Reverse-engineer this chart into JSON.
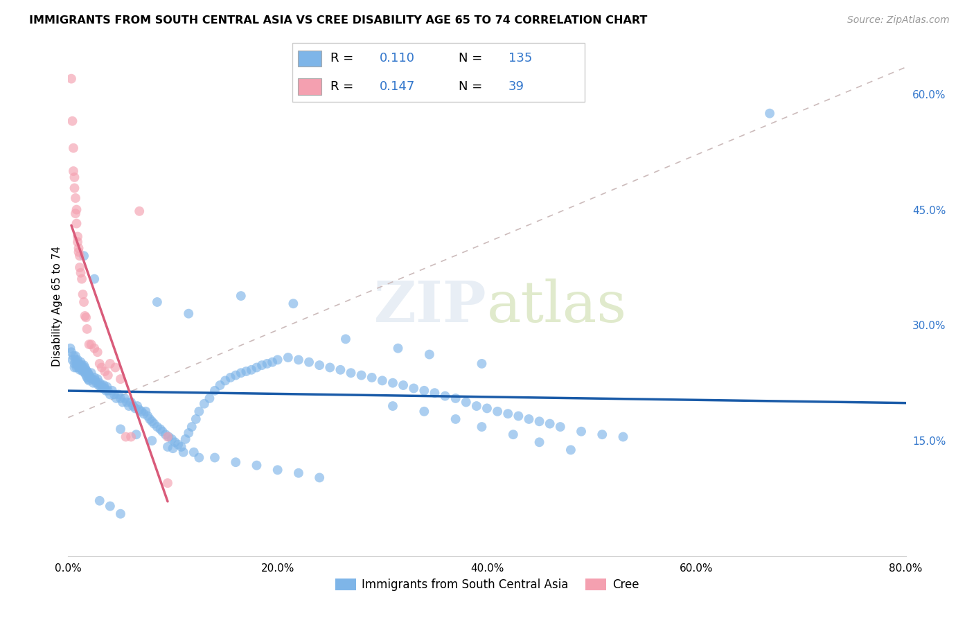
{
  "title": "IMMIGRANTS FROM SOUTH CENTRAL ASIA VS CREE DISABILITY AGE 65 TO 74 CORRELATION CHART",
  "source": "Source: ZipAtlas.com",
  "ylabel": "Disability Age 65 to 74",
  "legend1": "Immigrants from South Central Asia",
  "legend2": "Cree",
  "r1": "0.110",
  "n1": "135",
  "r2": "0.147",
  "n2": "39",
  "xlim": [
    0.0,
    0.8
  ],
  "ylim": [
    0.0,
    0.65
  ],
  "xticks": [
    0.0,
    0.2,
    0.4,
    0.6,
    0.8
  ],
  "yticks": [
    0.15,
    0.3,
    0.45,
    0.6
  ],
  "xtick_labels": [
    "0.0%",
    "20.0%",
    "40.0%",
    "60.0%",
    "80.0%"
  ],
  "ytick_labels": [
    "15.0%",
    "30.0%",
    "45.0%",
    "60.0%"
  ],
  "color_blue": "#7EB5E8",
  "color_pink": "#F4A0B0",
  "color_trend_blue": "#1A5BA8",
  "color_trend_pink": "#D95B7A",
  "color_dashed": "#CCBBBB",
  "background": "#FFFFFF",
  "watermark": "ZIPatlas",
  "blue_x": [
    0.002,
    0.003,
    0.004,
    0.005,
    0.006,
    0.006,
    0.007,
    0.007,
    0.008,
    0.008,
    0.009,
    0.009,
    0.01,
    0.01,
    0.011,
    0.011,
    0.012,
    0.012,
    0.013,
    0.013,
    0.014,
    0.014,
    0.015,
    0.015,
    0.016,
    0.016,
    0.017,
    0.017,
    0.018,
    0.018,
    0.019,
    0.019,
    0.02,
    0.02,
    0.021,
    0.022,
    0.023,
    0.024,
    0.025,
    0.026,
    0.027,
    0.028,
    0.029,
    0.03,
    0.031,
    0.032,
    0.033,
    0.034,
    0.035,
    0.036,
    0.037,
    0.038,
    0.04,
    0.042,
    0.044,
    0.046,
    0.048,
    0.05,
    0.052,
    0.054,
    0.056,
    0.058,
    0.06,
    0.062,
    0.064,
    0.066,
    0.068,
    0.07,
    0.072,
    0.074,
    0.076,
    0.078,
    0.08,
    0.082,
    0.085,
    0.088,
    0.09,
    0.093,
    0.096,
    0.099,
    0.102,
    0.105,
    0.108,
    0.112,
    0.115,
    0.118,
    0.122,
    0.125,
    0.13,
    0.135,
    0.14,
    0.145,
    0.15,
    0.155,
    0.16,
    0.165,
    0.17,
    0.175,
    0.18,
    0.185,
    0.19,
    0.195,
    0.2,
    0.21,
    0.22,
    0.23,
    0.24,
    0.25,
    0.26,
    0.27,
    0.28,
    0.29,
    0.3,
    0.31,
    0.32,
    0.33,
    0.34,
    0.35,
    0.36,
    0.37,
    0.38,
    0.39,
    0.4,
    0.41,
    0.42,
    0.43,
    0.44,
    0.45,
    0.46,
    0.47,
    0.49,
    0.51,
    0.53,
    0.67
  ],
  "blue_y": [
    0.27,
    0.265,
    0.255,
    0.26,
    0.25,
    0.245,
    0.26,
    0.255,
    0.25,
    0.245,
    0.255,
    0.248,
    0.25,
    0.245,
    0.248,
    0.242,
    0.252,
    0.245,
    0.248,
    0.242,
    0.245,
    0.24,
    0.248,
    0.242,
    0.245,
    0.238,
    0.242,
    0.235,
    0.24,
    0.232,
    0.238,
    0.23,
    0.235,
    0.228,
    0.232,
    0.238,
    0.23,
    0.225,
    0.232,
    0.228,
    0.225,
    0.23,
    0.222,
    0.225,
    0.22,
    0.222,
    0.218,
    0.222,
    0.218,
    0.215,
    0.22,
    0.215,
    0.21,
    0.215,
    0.21,
    0.205,
    0.21,
    0.205,
    0.2,
    0.205,
    0.2,
    0.195,
    0.2,
    0.195,
    0.192,
    0.195,
    0.19,
    0.188,
    0.185,
    0.188,
    0.182,
    0.178,
    0.175,
    0.172,
    0.168,
    0.165,
    0.162,
    0.158,
    0.155,
    0.152,
    0.148,
    0.145,
    0.142,
    0.152,
    0.16,
    0.168,
    0.178,
    0.188,
    0.198,
    0.205,
    0.215,
    0.222,
    0.228,
    0.232,
    0.235,
    0.238,
    0.24,
    0.242,
    0.245,
    0.248,
    0.25,
    0.252,
    0.255,
    0.258,
    0.255,
    0.252,
    0.248,
    0.245,
    0.242,
    0.238,
    0.235,
    0.232,
    0.228,
    0.225,
    0.222,
    0.218,
    0.215,
    0.212,
    0.208,
    0.205,
    0.2,
    0.195,
    0.192,
    0.188,
    0.185,
    0.182,
    0.178,
    0.175,
    0.172,
    0.168,
    0.162,
    0.158,
    0.155,
    0.575
  ],
  "blue_extra_x": [
    0.015,
    0.025,
    0.085,
    0.115,
    0.165,
    0.215,
    0.265,
    0.315,
    0.345,
    0.395,
    0.31,
    0.34,
    0.37,
    0.395,
    0.425,
    0.45,
    0.48,
    0.1,
    0.12,
    0.14,
    0.16,
    0.18,
    0.2,
    0.22,
    0.24,
    0.05,
    0.065,
    0.08,
    0.095,
    0.11,
    0.125,
    0.03,
    0.04,
    0.05
  ],
  "blue_extra_y": [
    0.39,
    0.36,
    0.33,
    0.315,
    0.338,
    0.328,
    0.282,
    0.27,
    0.262,
    0.25,
    0.195,
    0.188,
    0.178,
    0.168,
    0.158,
    0.148,
    0.138,
    0.14,
    0.135,
    0.128,
    0.122,
    0.118,
    0.112,
    0.108,
    0.102,
    0.165,
    0.158,
    0.15,
    0.142,
    0.135,
    0.128,
    0.072,
    0.065,
    0.055
  ],
  "pink_x": [
    0.003,
    0.004,
    0.005,
    0.005,
    0.006,
    0.006,
    0.007,
    0.007,
    0.008,
    0.008,
    0.009,
    0.009,
    0.01,
    0.01,
    0.011,
    0.011,
    0.012,
    0.013,
    0.014,
    0.015,
    0.016,
    0.017,
    0.018,
    0.02,
    0.022,
    0.025,
    0.028,
    0.03,
    0.032,
    0.035,
    0.038,
    0.04,
    0.045,
    0.05,
    0.055,
    0.06,
    0.068,
    0.095,
    0.095
  ],
  "pink_y": [
    0.62,
    0.565,
    0.53,
    0.5,
    0.492,
    0.478,
    0.465,
    0.445,
    0.45,
    0.432,
    0.415,
    0.408,
    0.4,
    0.395,
    0.39,
    0.375,
    0.368,
    0.36,
    0.34,
    0.33,
    0.312,
    0.31,
    0.295,
    0.275,
    0.275,
    0.27,
    0.265,
    0.25,
    0.245,
    0.24,
    0.235,
    0.25,
    0.245,
    0.23,
    0.155,
    0.155,
    0.448,
    0.095,
    0.155
  ]
}
